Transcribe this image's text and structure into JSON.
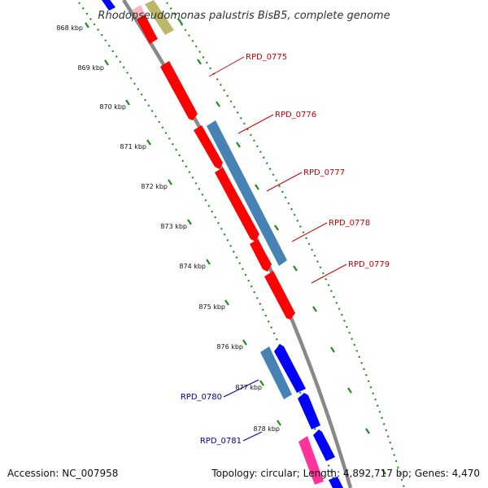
{
  "title": "Rhodopseudomonas palustris BisB5, complete genome",
  "footer": {
    "accession": "Accession: NC_007958",
    "stats": "Topology: circular; Length: 4,892,717 bp; Genes: 4,470"
  },
  "colors": {
    "backbone": "#888888",
    "tick": "#228B22",
    "forward_gene_red": "#ff0000",
    "forward_gene_steel": "#4682b4",
    "reverse_gene_blue": "#0000ff",
    "reverse_gene_steel": "#4682b4",
    "other_gene_pink": "#ff3399",
    "label_red": "#cc0000",
    "label_blue": "#000099"
  },
  "kbp_ticks": [
    {
      "label": "868 kbp"
    },
    {
      "label": "869 kbp"
    },
    {
      "label": "870 kbp"
    },
    {
      "label": "871 kbp"
    },
    {
      "label": "872 kbp"
    },
    {
      "label": "873 kbp"
    },
    {
      "label": "874 kbp"
    },
    {
      "label": "875 kbp"
    },
    {
      "label": "876 kbp"
    },
    {
      "label": "877 kbp"
    },
    {
      "label": "878 kbp"
    }
  ],
  "gene_labels": [
    {
      "label": "RPD_0775",
      "strand": "forward"
    },
    {
      "label": "RPD_0776",
      "strand": "forward"
    },
    {
      "label": "RPD_0777",
      "strand": "forward"
    },
    {
      "label": "RPD_0778",
      "strand": "forward"
    },
    {
      "label": "RPD_0779",
      "strand": "forward"
    },
    {
      "label": "RPD_0780",
      "strand": "reverse"
    },
    {
      "label": "RPD_0781",
      "strand": "reverse"
    }
  ]
}
